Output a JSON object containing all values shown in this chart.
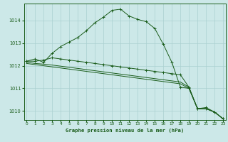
{
  "title": "Graphe pression niveau de la mer (hPa)",
  "bg_color": "#cce8e8",
  "grid_color": "#aad0d0",
  "line_color": "#1a5c1a",
  "xlim": [
    -0.3,
    23.3
  ],
  "ylim": [
    1009.6,
    1014.75
  ],
  "yticks": [
    1010,
    1011,
    1012,
    1013,
    1014
  ],
  "xticks": [
    0,
    1,
    2,
    3,
    4,
    5,
    6,
    7,
    8,
    9,
    10,
    11,
    12,
    13,
    14,
    15,
    16,
    17,
    18,
    19,
    20,
    21,
    22,
    23
  ],
  "series": [
    {
      "markers": true,
      "x": [
        0,
        1,
        2,
        3,
        4,
        5,
        6,
        7,
        8,
        9,
        10,
        11,
        12,
        13,
        14,
        15,
        16,
        17,
        18,
        19,
        20,
        21,
        22,
        23
      ],
      "y": [
        1012.2,
        1012.3,
        1012.15,
        1012.55,
        1012.85,
        1013.05,
        1013.25,
        1013.55,
        1013.9,
        1014.15,
        1014.45,
        1014.5,
        1014.2,
        1014.05,
        1013.95,
        1013.65,
        1012.95,
        1012.15,
        1011.05,
        1011.0,
        1010.1,
        1010.15,
        1009.95,
        1009.65
      ]
    },
    {
      "markers": false,
      "x": [
        0,
        1,
        2,
        3,
        4,
        5,
        6,
        7,
        8,
        9,
        10,
        11,
        12,
        13,
        14,
        15,
        16,
        17,
        18,
        19,
        20,
        21,
        22,
        23
      ],
      "y": [
        1012.1,
        1012.05,
        1012.0,
        1011.95,
        1011.9,
        1011.85,
        1011.8,
        1011.75,
        1011.7,
        1011.65,
        1011.6,
        1011.55,
        1011.5,
        1011.45,
        1011.4,
        1011.35,
        1011.3,
        1011.25,
        1011.2,
        1011.0,
        1010.1,
        1010.1,
        1009.95,
        1009.65
      ]
    },
    {
      "markers": false,
      "x": [
        0,
        1,
        2,
        3,
        4,
        5,
        6,
        7,
        8,
        9,
        10,
        11,
        12,
        13,
        14,
        15,
        16,
        17,
        18,
        19,
        20,
        21,
        22,
        23
      ],
      "y": [
        1012.15,
        1012.1,
        1012.07,
        1012.03,
        1011.98,
        1011.93,
        1011.88,
        1011.83,
        1011.78,
        1011.73,
        1011.68,
        1011.63,
        1011.58,
        1011.53,
        1011.48,
        1011.43,
        1011.38,
        1011.33,
        1011.28,
        1011.05,
        1010.1,
        1010.1,
        1009.95,
        1009.65
      ]
    },
    {
      "markers": true,
      "x": [
        0,
        1,
        2,
        3,
        4,
        5,
        6,
        7,
        8,
        9,
        10,
        11,
        12,
        13,
        14,
        15,
        16,
        17,
        18,
        19,
        20,
        21,
        22,
        23
      ],
      "y": [
        1012.2,
        1012.2,
        1012.25,
        1012.35,
        1012.3,
        1012.25,
        1012.2,
        1012.15,
        1012.1,
        1012.05,
        1012.0,
        1011.95,
        1011.9,
        1011.85,
        1011.8,
        1011.75,
        1011.7,
        1011.65,
        1011.6,
        1011.05,
        1010.1,
        1010.1,
        1009.95,
        1009.65
      ]
    }
  ]
}
